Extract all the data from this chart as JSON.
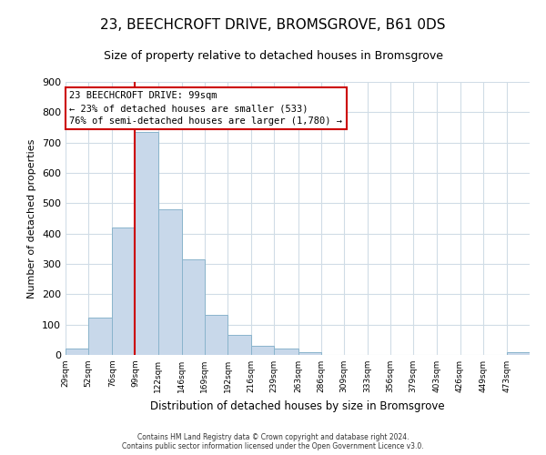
{
  "title": "23, BEECHCROFT DRIVE, BROMSGROVE, B61 0DS",
  "subtitle": "Size of property relative to detached houses in Bromsgrove",
  "xlabel": "Distribution of detached houses by size in Bromsgrove",
  "ylabel": "Number of detached properties",
  "footer_line1": "Contains HM Land Registry data © Crown copyright and database right 2024.",
  "footer_line2": "Contains public sector information licensed under the Open Government Licence v3.0.",
  "bar_edges": [
    29,
    52,
    76,
    99,
    122,
    146,
    169,
    192,
    216,
    239,
    263,
    286,
    309,
    333,
    356,
    379,
    403,
    426,
    449,
    473,
    496
  ],
  "bar_heights": [
    22,
    122,
    420,
    735,
    480,
    315,
    132,
    65,
    30,
    22,
    10,
    0,
    0,
    0,
    0,
    0,
    0,
    0,
    0,
    8,
    0
  ],
  "bar_color": "#c8d8ea",
  "bar_edge_color": "#8ab4cc",
  "vline_color": "#cc0000",
  "vline_x": 99,
  "annotation_title": "23 BEECHCROFT DRIVE: 99sqm",
  "annotation_line2": "← 23% of detached houses are smaller (533)",
  "annotation_line3": "76% of semi-detached houses are larger (1,780) →",
  "annotation_box_color": "#ffffff",
  "annotation_box_edge": "#cc0000",
  "ylim": [
    0,
    900
  ],
  "yticks": [
    0,
    100,
    200,
    300,
    400,
    500,
    600,
    700,
    800,
    900
  ],
  "background_color": "#ffffff",
  "grid_color": "#d0dce6",
  "title_fontsize": 11,
  "subtitle_fontsize": 9
}
